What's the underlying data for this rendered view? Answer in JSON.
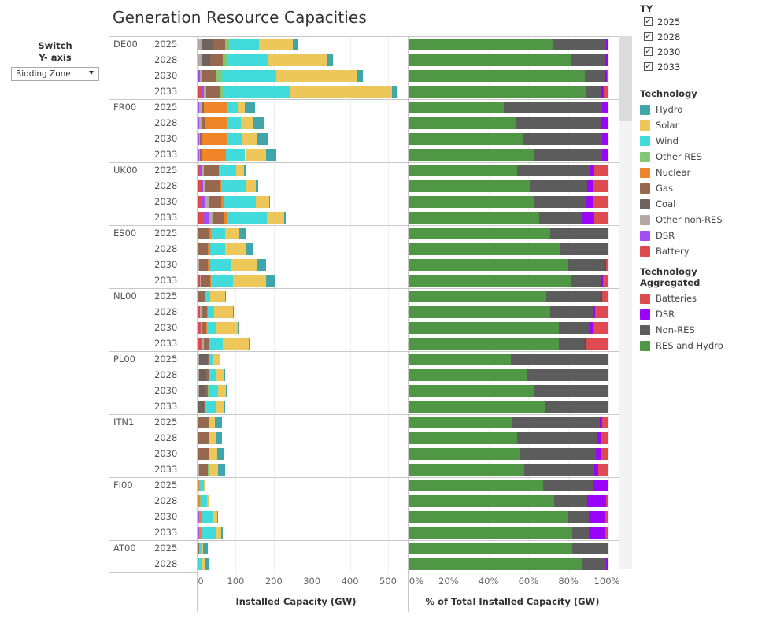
{
  "title": "Generation Resource Capacities",
  "controls": {
    "switch_label_line1": "Switch",
    "switch_label_line2": "Y- axis",
    "y_axis_dropdown": {
      "selected": "Bidding Zone"
    }
  },
  "filters": {
    "ty_title": "TY",
    "ty_items": [
      {
        "label": "2025",
        "checked": true
      },
      {
        "label": "2028",
        "checked": true
      },
      {
        "label": "2030",
        "checked": true
      },
      {
        "label": "2033",
        "checked": true
      }
    ],
    "check_glyph": "✓"
  },
  "legend": {
    "technology_title": "Technology",
    "technology": [
      {
        "name": "Hydro",
        "color": "#41a6ac"
      },
      {
        "name": "Solar",
        "color": "#edc75a"
      },
      {
        "name": "Wind",
        "color": "#40dbda"
      },
      {
        "name": "Other RES",
        "color": "#82c873"
      },
      {
        "name": "Nuclear",
        "color": "#ef8528"
      },
      {
        "name": "Gas",
        "color": "#976850"
      },
      {
        "name": "Coal",
        "color": "#6f6360"
      },
      {
        "name": "Other non-RES",
        "color": "#b3a8a4"
      },
      {
        "name": "DSR",
        "color": "#a24ef2"
      },
      {
        "name": "Battery",
        "color": "#dd4b50"
      }
    ],
    "aggregated_title": "Technology Aggregated",
    "aggregated": [
      {
        "name": "Batteries",
        "color": "#dd4b50"
      },
      {
        "name": "DSR",
        "color": "#9a04f8"
      },
      {
        "name": "Non-RES",
        "color": "#5c5c5c"
      },
      {
        "name": "RES and Hydro",
        "color": "#4f9645"
      }
    ]
  },
  "chart_data": [
    {
      "type": "bar",
      "orientation": "horizontal-stacked",
      "title": "Installed Capacity (GW)",
      "xlabel": "Installed Capacity (GW)",
      "xlim": [
        0,
        550
      ],
      "xticks": [
        "0",
        "100",
        "200",
        "300",
        "400",
        "500"
      ],
      "xtick_values": [
        0,
        100,
        200,
        300,
        400,
        500
      ],
      "stack_order": [
        "Battery",
        "DSR",
        "Other non-RES",
        "Coal",
        "Gas",
        "Nuclear",
        "Other RES",
        "Wind",
        "Solar",
        "Hydro"
      ],
      "rows": [
        {
          "zone": "DE00",
          "year": "2025",
          "values": [
            0,
            2,
            10,
            27,
            33,
            0,
            10,
            80,
            89,
            12
          ]
        },
        {
          "zone": "DE00",
          "year": "2028",
          "values": [
            0,
            3,
            10,
            20,
            33,
            0,
            10,
            108,
            157,
            14
          ]
        },
        {
          "zone": "DE00",
          "year": "2030",
          "values": [
            3,
            3,
            6,
            0,
            35,
            0,
            14,
            145,
            213,
            14
          ]
        },
        {
          "zone": "DE00",
          "year": "2033",
          "values": [
            10,
            6,
            6,
            0,
            35,
            0,
            10,
            174,
            270,
            12
          ]
        },
        {
          "zone": "FR00",
          "year": "2025",
          "values": [
            0,
            4,
            6,
            0,
            6,
            62,
            0,
            29,
            17,
            27
          ]
        },
        {
          "zone": "FR00",
          "year": "2028",
          "values": [
            0,
            4,
            6,
            0,
            8,
            60,
            0,
            35,
            33,
            29
          ]
        },
        {
          "zone": "FR00",
          "year": "2030",
          "values": [
            0,
            4,
            3,
            0,
            5,
            64,
            2,
            37,
            41,
            27
          ]
        },
        {
          "zone": "FR00",
          "year": "2033",
          "values": [
            0,
            4,
            2,
            0,
            6,
            62,
            1,
            50,
            54,
            27
          ]
        },
        {
          "zone": "UK00",
          "year": "2025",
          "values": [
            6,
            4,
            6,
            0,
            39,
            0,
            1,
            45,
            21,
            4
          ]
        },
        {
          "zone": "UK00",
          "year": "2028",
          "values": [
            10,
            4,
            6,
            0,
            37,
            4,
            1,
            64,
            27,
            6
          ]
        },
        {
          "zone": "UK00",
          "year": "2030",
          "values": [
            12,
            8,
            8,
            0,
            35,
            6,
            0,
            83,
            35,
            4
          ]
        },
        {
          "zone": "UK00",
          "year": "2033",
          "values": [
            14,
            14,
            12,
            0,
            31,
            6,
            0,
            105,
            45,
            4
          ]
        },
        {
          "zone": "ES00",
          "year": "2025",
          "values": [
            0,
            0,
            2,
            1,
            25,
            8,
            1,
            35,
            37,
            19
          ]
        },
        {
          "zone": "ES00",
          "year": "2028",
          "values": [
            0,
            0,
            2,
            0,
            25,
            6,
            0,
            39,
            54,
            21
          ]
        },
        {
          "zone": "ES00",
          "year": "2030",
          "values": [
            0,
            2,
            2,
            0,
            23,
            6,
            1,
            52,
            68,
            25
          ]
        },
        {
          "zone": "ES00",
          "year": "2033",
          "values": [
            6,
            1,
            2,
            0,
            25,
            2,
            0,
            58,
            85,
            25
          ]
        },
        {
          "zone": "NL00",
          "year": "2025",
          "values": [
            0,
            1,
            2,
            0,
            17,
            1,
            0,
            12,
            39,
            2
          ]
        },
        {
          "zone": "NL00",
          "year": "2028",
          "values": [
            6,
            1,
            4,
            0,
            14,
            1,
            1,
            17,
            50,
            2
          ]
        },
        {
          "zone": "NL00",
          "year": "2030",
          "values": [
            8,
            1,
            2,
            0,
            12,
            1,
            0,
            23,
            60,
            1
          ]
        },
        {
          "zone": "NL00",
          "year": "2033",
          "values": [
            12,
            0,
            4,
            0,
            14,
            0,
            1,
            35,
            68,
            2
          ]
        },
        {
          "zone": "PL00",
          "year": "2025",
          "values": [
            0,
            0,
            4,
            23,
            4,
            0,
            0,
            10,
            17,
            1
          ]
        },
        {
          "zone": "PL00",
          "year": "2028",
          "values": [
            0,
            0,
            4,
            19,
            6,
            0,
            0,
            21,
            21,
            1
          ]
        },
        {
          "zone": "PL00",
          "year": "2030",
          "values": [
            0,
            0,
            4,
            17,
            6,
            0,
            1,
            25,
            21,
            1
          ]
        },
        {
          "zone": "PL00",
          "year": "2033",
          "values": [
            0,
            0,
            1,
            15,
            4,
            1,
            0,
            27,
            23,
            1
          ]
        },
        {
          "zone": "ITN1",
          "year": "2025",
          "values": [
            0,
            0,
            2,
            0,
            27,
            0,
            1,
            0,
            15,
            19
          ]
        },
        {
          "zone": "ITN1",
          "year": "2028",
          "values": [
            0,
            1,
            2,
            0,
            25,
            0,
            1,
            0,
            19,
            17
          ]
        },
        {
          "zone": "ITN1",
          "year": "2030",
          "values": [
            0,
            1,
            2,
            0,
            25,
            0,
            1,
            0,
            23,
            17
          ]
        },
        {
          "zone": "ITN1",
          "year": "2033",
          "values": [
            0,
            2,
            2,
            0,
            23,
            0,
            1,
            0,
            25,
            19
          ]
        },
        {
          "zone": "FI00",
          "year": "2025",
          "values": [
            0,
            0,
            0,
            0,
            1,
            4,
            2,
            10,
            1,
            1
          ]
        },
        {
          "zone": "FI00",
          "year": "2028",
          "values": [
            0,
            2,
            0,
            0,
            1,
            4,
            1,
            17,
            4,
            1
          ]
        },
        {
          "zone": "FI00",
          "year": "2030",
          "values": [
            0,
            4,
            0,
            0,
            0,
            6,
            0,
            29,
            12,
            1
          ]
        },
        {
          "zone": "FI00",
          "year": "2033",
          "values": [
            0,
            4,
            0,
            0,
            1,
            6,
            0,
            39,
            12,
            4
          ]
        },
        {
          "zone": "AT00",
          "year": "2025",
          "values": [
            0,
            0,
            0,
            0,
            4,
            0,
            0,
            6,
            4,
            12
          ]
        },
        {
          "zone": "AT00",
          "year": "2028",
          "values": [
            0,
            0,
            0,
            0,
            1,
            0,
            1,
            8,
            10,
            12
          ]
        }
      ]
    },
    {
      "type": "bar",
      "orientation": "horizontal-stacked-percent",
      "title": "% of Total Installed Capacity (GW)",
      "xlabel": "% of Total Installed Capacity (GW)",
      "xlim": [
        0,
        100
      ],
      "xticks": [
        "0%",
        "20%",
        "40%",
        "60%",
        "80%",
        "100%"
      ],
      "xtick_values": [
        0,
        20,
        40,
        60,
        80,
        100
      ],
      "stack_order": [
        "RES and Hydro",
        "Non-RES",
        "DSR",
        "Batteries"
      ],
      "rows": [
        {
          "zone": "DE00",
          "year": "2025",
          "values": [
            72,
            27,
            0.5,
            0.5
          ]
        },
        {
          "zone": "DE00",
          "year": "2028",
          "values": [
            81,
            17.5,
            1,
            0.5
          ]
        },
        {
          "zone": "DE00",
          "year": "2030",
          "values": [
            88,
            10,
            1.2,
            0.8
          ]
        },
        {
          "zone": "DE00",
          "year": "2033",
          "values": [
            89,
            7.5,
            1,
            2.5
          ]
        },
        {
          "zone": "FR00",
          "year": "2025",
          "values": [
            47.5,
            49.5,
            2.5,
            0.5
          ]
        },
        {
          "zone": "FR00",
          "year": "2028",
          "values": [
            54,
            42,
            3.7,
            0.3
          ]
        },
        {
          "zone": "FR00",
          "year": "2030",
          "values": [
            57,
            40,
            2.7,
            0.3
          ]
        },
        {
          "zone": "FR00",
          "year": "2033",
          "values": [
            62.5,
            34.5,
            2.7,
            0.3
          ]
        },
        {
          "zone": "UK00",
          "year": "2025",
          "values": [
            54.5,
            36.5,
            2,
            7
          ]
        },
        {
          "zone": "UK00",
          "year": "2028",
          "values": [
            60.5,
            29,
            3,
            7.5
          ]
        },
        {
          "zone": "UK00",
          "year": "2030",
          "values": [
            63,
            25.5,
            4,
            7.5
          ]
        },
        {
          "zone": "UK00",
          "year": "2033",
          "values": [
            65.5,
            21.5,
            6,
            7
          ]
        },
        {
          "zone": "ES00",
          "year": "2025",
          "values": [
            71,
            28.5,
            0.5,
            0
          ]
        },
        {
          "zone": "ES00",
          "year": "2028",
          "values": [
            76,
            23.7,
            0,
            0.3
          ]
        },
        {
          "zone": "ES00",
          "year": "2030",
          "values": [
            80,
            18,
            1,
            1
          ]
        },
        {
          "zone": "ES00",
          "year": "2033",
          "values": [
            81.5,
            14.5,
            1.2,
            2.8
          ]
        },
        {
          "zone": "NL00",
          "year": "2025",
          "values": [
            69,
            27,
            1,
            3
          ]
        },
        {
          "zone": "NL00",
          "year": "2028",
          "values": [
            71,
            21.5,
            1,
            6.5
          ]
        },
        {
          "zone": "NL00",
          "year": "2030",
          "values": [
            75,
            15.5,
            1.5,
            8
          ]
        },
        {
          "zone": "NL00",
          "year": "2033",
          "values": [
            75,
            13,
            1,
            11
          ]
        },
        {
          "zone": "PL00",
          "year": "2025",
          "values": [
            51,
            49,
            0,
            0
          ]
        },
        {
          "zone": "PL00",
          "year": "2028",
          "values": [
            59,
            41,
            0,
            0
          ]
        },
        {
          "zone": "PL00",
          "year": "2030",
          "values": [
            63,
            37,
            0,
            0
          ]
        },
        {
          "zone": "PL00",
          "year": "2033",
          "values": [
            68,
            32,
            0,
            0
          ]
        },
        {
          "zone": "ITN1",
          "year": "2025",
          "values": [
            52,
            43.5,
            1.5,
            3
          ]
        },
        {
          "zone": "ITN1",
          "year": "2028",
          "values": [
            54.5,
            40,
            2,
            3.5
          ]
        },
        {
          "zone": "ITN1",
          "year": "2030",
          "values": [
            56,
            37.8,
            2.3,
            3.9
          ]
        },
        {
          "zone": "ITN1",
          "year": "2033",
          "values": [
            58,
            35,
            2,
            5
          ]
        },
        {
          "zone": "FI00",
          "year": "2025",
          "values": [
            67.5,
            24.5,
            7.5,
            0.5
          ]
        },
        {
          "zone": "FI00",
          "year": "2028",
          "values": [
            73,
            16.5,
            9.5,
            1
          ]
        },
        {
          "zone": "FI00",
          "year": "2030",
          "values": [
            79.5,
            10.5,
            8.5,
            1.5
          ]
        },
        {
          "zone": "FI00",
          "year": "2033",
          "values": [
            82,
            8,
            8.5,
            1.5
          ]
        },
        {
          "zone": "AT00",
          "year": "2025",
          "values": [
            82,
            17.5,
            0.5,
            0
          ]
        },
        {
          "zone": "AT00",
          "year": "2028",
          "values": [
            87,
            12,
            1,
            0
          ]
        }
      ]
    }
  ]
}
